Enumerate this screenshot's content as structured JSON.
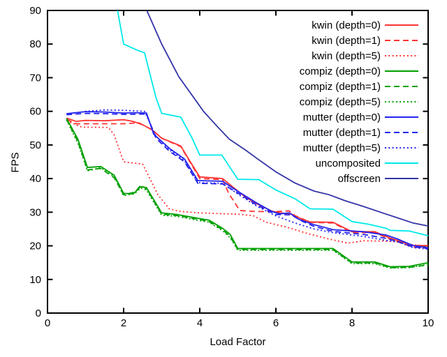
{
  "page": {
    "background": "#ffffff"
  },
  "chart_data": {
    "type": "line",
    "title": "",
    "xlabel": "Load Factor",
    "ylabel": "FPS",
    "xlim": [
      0,
      10
    ],
    "ylim": [
      0,
      90
    ],
    "xticks": [
      0,
      2,
      4,
      6,
      8,
      10
    ],
    "yticks": [
      0,
      10,
      20,
      30,
      40,
      50,
      60,
      70,
      80,
      90
    ],
    "grid": false,
    "legend_position": "top-right-inside",
    "axis_color": "#000000",
    "text_color": "#000000",
    "series": [
      {
        "name": "kwin (depth=0)",
        "color": "#ff3333",
        "style": "solid",
        "points": [
          [
            0.5,
            58
          ],
          [
            0.75,
            57
          ],
          [
            1,
            57.3
          ],
          [
            1.5,
            57.2
          ],
          [
            2,
            57.5
          ],
          [
            2.25,
            57
          ],
          [
            2.5,
            56
          ],
          [
            2.75,
            54.5
          ],
          [
            3,
            52
          ],
          [
            3.5,
            49.7
          ],
          [
            3.75,
            45
          ],
          [
            4,
            40.5
          ],
          [
            4.6,
            40
          ],
          [
            4.9,
            37.2
          ],
          [
            5.2,
            34.5
          ],
          [
            5.5,
            32.5
          ],
          [
            5.9,
            30.3
          ],
          [
            6.1,
            29.8
          ],
          [
            6.4,
            29.5
          ],
          [
            6.7,
            27.9
          ],
          [
            6.9,
            27.1
          ],
          [
            7.5,
            27
          ],
          [
            8,
            24.2
          ],
          [
            8.6,
            24.2
          ],
          [
            9,
            22.3
          ],
          [
            9.6,
            20.1
          ],
          [
            10,
            20.1
          ]
        ]
      },
      {
        "name": "kwin (depth=1)",
        "color": "#ff3333",
        "style": "dashed",
        "points": [
          [
            0.5,
            57.6
          ],
          [
            0.75,
            56.3
          ],
          [
            1.5,
            56.3
          ],
          [
            2,
            56.3
          ],
          [
            2.4,
            56.6
          ],
          [
            2.75,
            54.5
          ],
          [
            3,
            52
          ],
          [
            3.5,
            49.5
          ],
          [
            3.75,
            44.8
          ],
          [
            4,
            40
          ],
          [
            4.6,
            39.7
          ],
          [
            4.76,
            35.6
          ],
          [
            4.94,
            32.5
          ],
          [
            5.05,
            30.5
          ],
          [
            5.5,
            30.2
          ],
          [
            6,
            30.2
          ],
          [
            6.35,
            30.4
          ],
          [
            6.5,
            29
          ],
          [
            6.9,
            27
          ],
          [
            7.5,
            26.8
          ],
          [
            8,
            24
          ],
          [
            8.6,
            23.9
          ],
          [
            9,
            22
          ],
          [
            9.6,
            19.6
          ],
          [
            10,
            19.4
          ]
        ]
      },
      {
        "name": "kwin (depth=5)",
        "color": "#ff3333",
        "style": "dotted",
        "points": [
          [
            0.5,
            57.2
          ],
          [
            0.9,
            55.3
          ],
          [
            1.6,
            55.2
          ],
          [
            1.75,
            53
          ],
          [
            2,
            45
          ],
          [
            2.5,
            44.3
          ],
          [
            2.9,
            35.2
          ],
          [
            3.2,
            31
          ],
          [
            3.5,
            30.2
          ],
          [
            4,
            29.8
          ],
          [
            4.5,
            29.6
          ],
          [
            5,
            29.4
          ],
          [
            5.4,
            29
          ],
          [
            5.75,
            27
          ],
          [
            6.3,
            25.5
          ],
          [
            6.85,
            23.6
          ],
          [
            7.4,
            22
          ],
          [
            7.9,
            20.8
          ],
          [
            8.3,
            21.5
          ],
          [
            8.8,
            21.4
          ],
          [
            9.2,
            21.2
          ],
          [
            9.6,
            20.3
          ],
          [
            10,
            19.9
          ]
        ]
      },
      {
        "name": "compiz (depth=0)",
        "color": "#00a000",
        "style": "solid",
        "points": [
          [
            0.5,
            57.9
          ],
          [
            0.8,
            51.7
          ],
          [
            1.05,
            43.3
          ],
          [
            1.4,
            43.6
          ],
          [
            1.75,
            41
          ],
          [
            2,
            35.6
          ],
          [
            2.25,
            35.4
          ],
          [
            2.45,
            37.6
          ],
          [
            2.6,
            37.3
          ],
          [
            3,
            29.8
          ],
          [
            3.4,
            29.3
          ],
          [
            4,
            28.1
          ],
          [
            4.25,
            27.6
          ],
          [
            4.6,
            25.2
          ],
          [
            4.8,
            23.4
          ],
          [
            5,
            19.2
          ],
          [
            7.5,
            19.2
          ],
          [
            8,
            15.2
          ],
          [
            8.6,
            15.2
          ],
          [
            9,
            13.8
          ],
          [
            9.5,
            13.9
          ],
          [
            10,
            15
          ]
        ]
      },
      {
        "name": "compiz (depth=1)",
        "color": "#00a000",
        "style": "dashed",
        "points": [
          [
            0.5,
            57.6
          ],
          [
            0.8,
            51
          ],
          [
            1.05,
            42.6
          ],
          [
            1.4,
            43
          ],
          [
            1.75,
            40.3
          ],
          [
            2,
            35.2
          ],
          [
            2.3,
            36
          ],
          [
            2.45,
            38
          ],
          [
            2.6,
            37
          ],
          [
            3,
            29.4
          ],
          [
            3.4,
            29
          ],
          [
            4,
            27.8
          ],
          [
            4.25,
            27.2
          ],
          [
            4.6,
            24.8
          ],
          [
            4.8,
            22.8
          ],
          [
            5,
            18.9
          ],
          [
            7.5,
            18.9
          ],
          [
            8,
            14.9
          ],
          [
            8.6,
            14.9
          ],
          [
            9,
            13.5
          ],
          [
            9.5,
            13.6
          ],
          [
            10,
            14.3
          ]
        ]
      },
      {
        "name": "compiz (depth=5)",
        "color": "#00a000",
        "style": "dotted",
        "points": [
          [
            0.5,
            57.4
          ],
          [
            0.8,
            50.5
          ],
          [
            1.05,
            42.3
          ],
          [
            1.4,
            43.2
          ],
          [
            1.75,
            40.6
          ],
          [
            2,
            34.9
          ],
          [
            2.3,
            35.6
          ],
          [
            2.45,
            37.2
          ],
          [
            2.6,
            36.6
          ],
          [
            3,
            29.1
          ],
          [
            3.4,
            28.8
          ],
          [
            4,
            27.5
          ],
          [
            4.25,
            27
          ],
          [
            4.6,
            24.5
          ],
          [
            4.8,
            22.4
          ],
          [
            5,
            18.7
          ],
          [
            7.5,
            18.7
          ],
          [
            8,
            14.7
          ],
          [
            8.6,
            14.7
          ],
          [
            9,
            13.4
          ],
          [
            9.5,
            13.5
          ],
          [
            10,
            14.5
          ]
        ]
      },
      {
        "name": "mutter (depth=0)",
        "color": "#2222ee",
        "style": "solid",
        "points": [
          [
            0.5,
            59.3
          ],
          [
            1,
            59.9
          ],
          [
            1.5,
            59.8
          ],
          [
            2,
            59.5
          ],
          [
            2.3,
            59.6
          ],
          [
            2.6,
            59.5
          ],
          [
            2.79,
            53.2
          ],
          [
            3.2,
            49
          ],
          [
            3.6,
            45.8
          ],
          [
            3.95,
            39.4
          ],
          [
            4.6,
            39.2
          ],
          [
            5,
            36.2
          ],
          [
            5.5,
            32.7
          ],
          [
            5.9,
            30.2
          ],
          [
            6.1,
            29.5
          ],
          [
            6.35,
            29.8
          ],
          [
            6.6,
            27.9
          ],
          [
            7,
            26.3
          ],
          [
            7.5,
            24.8
          ],
          [
            8.3,
            24.2
          ],
          [
            8.9,
            23.2
          ],
          [
            9.2,
            22
          ],
          [
            9.6,
            20.1
          ],
          [
            10,
            19.4
          ]
        ]
      },
      {
        "name": "mutter (depth=1)",
        "color": "#2222ee",
        "style": "dashed",
        "points": [
          [
            0.5,
            59
          ],
          [
            1,
            59.4
          ],
          [
            1.5,
            59.3
          ],
          [
            2,
            59.1
          ],
          [
            2.6,
            59.2
          ],
          [
            2.85,
            52
          ],
          [
            3.2,
            48.2
          ],
          [
            3.6,
            45
          ],
          [
            3.95,
            38.6
          ],
          [
            4.6,
            38.4
          ],
          [
            5,
            35.7
          ],
          [
            5.5,
            32.1
          ],
          [
            6,
            29.3
          ],
          [
            6.4,
            29.2
          ],
          [
            6.7,
            27.3
          ],
          [
            7,
            25.8
          ],
          [
            7.5,
            24.3
          ],
          [
            8.3,
            23.4
          ],
          [
            8.9,
            22.2
          ],
          [
            9.2,
            21.3
          ],
          [
            9.6,
            19.7
          ],
          [
            10,
            19.2
          ]
        ]
      },
      {
        "name": "mutter (depth=5)",
        "color": "#2222ee",
        "style": "dotted",
        "points": [
          [
            0.5,
            59.1
          ],
          [
            1,
            60
          ],
          [
            1.5,
            60.4
          ],
          [
            2,
            60.3
          ],
          [
            2.55,
            60
          ],
          [
            2.85,
            52.6
          ],
          [
            3.2,
            48.6
          ],
          [
            3.6,
            45.3
          ],
          [
            3.95,
            38.8
          ],
          [
            4.6,
            38.6
          ],
          [
            5,
            35.4
          ],
          [
            5.5,
            31.8
          ],
          [
            6,
            28.9
          ],
          [
            6.5,
            26.8
          ],
          [
            7,
            25
          ],
          [
            7.5,
            23.9
          ],
          [
            8.3,
            22.8
          ],
          [
            8.9,
            21.6
          ],
          [
            9.2,
            21.2
          ],
          [
            9.6,
            19.5
          ],
          [
            10,
            19
          ]
        ]
      },
      {
        "name": "uncomposited",
        "color": "#00e9e9",
        "style": "solid",
        "points": [
          [
            1.84,
            90
          ],
          [
            2,
            80
          ],
          [
            2.4,
            78
          ],
          [
            2.55,
            77.4
          ],
          [
            2.85,
            64.1
          ],
          [
            3,
            59.4
          ],
          [
            3.5,
            58.3
          ],
          [
            3.8,
            52
          ],
          [
            4,
            47
          ],
          [
            4.58,
            47
          ],
          [
            5,
            39.8
          ],
          [
            5.55,
            39.7
          ],
          [
            6,
            36.6
          ],
          [
            6.5,
            34
          ],
          [
            6.9,
            31
          ],
          [
            7.5,
            30.9
          ],
          [
            8,
            27.2
          ],
          [
            8.45,
            26.4
          ],
          [
            8.9,
            25.2
          ],
          [
            9,
            24.6
          ],
          [
            9.5,
            24.4
          ],
          [
            10,
            23
          ]
        ]
      },
      {
        "name": "offscreen",
        "color": "#3333a8",
        "style": "solid",
        "points": [
          [
            2.61,
            90
          ],
          [
            3,
            80
          ],
          [
            3.45,
            70.3
          ],
          [
            4.1,
            60
          ],
          [
            4.5,
            55
          ],
          [
            4.78,
            51.7
          ],
          [
            5.2,
            48.5
          ],
          [
            5.5,
            46
          ],
          [
            6,
            42
          ],
          [
            6.5,
            38.7
          ],
          [
            7,
            36.3
          ],
          [
            7.4,
            35.2
          ],
          [
            7.8,
            33.5
          ],
          [
            8.3,
            31.7
          ],
          [
            8.8,
            29.8
          ],
          [
            9.2,
            28.3
          ],
          [
            9.6,
            26.8
          ],
          [
            10,
            25.9
          ]
        ]
      }
    ]
  }
}
